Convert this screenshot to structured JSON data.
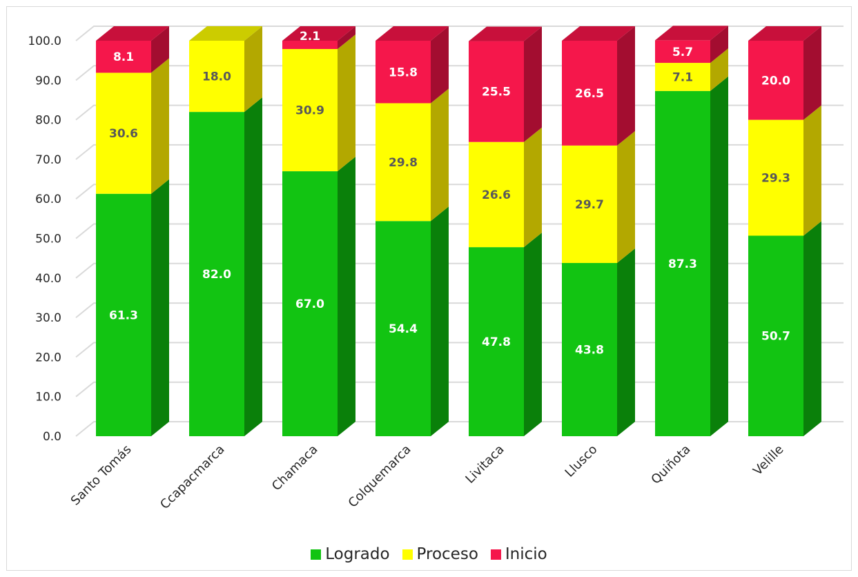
{
  "chart_data": {
    "type": "bar",
    "stacked": true,
    "style": "3d-column",
    "categories": [
      "Santo Tomás",
      "Ccapacmarca",
      "Chamaca",
      "Colquemarca",
      "Livitaca",
      "Llusco",
      "Quiñota",
      "Velille"
    ],
    "series": [
      {
        "name": "Logrado",
        "color": "#12c412",
        "side_color": "#0a800a",
        "top_color": "#0fa30f",
        "label_color": "#ffffff",
        "values": [
          61.3,
          82.0,
          67.0,
          54.4,
          47.8,
          43.8,
          87.3,
          50.7
        ]
      },
      {
        "name": "Proceso",
        "color": "#ffff00",
        "side_color": "#b3a800",
        "top_color": "#cccc00",
        "label_color": "#595959",
        "values": [
          30.6,
          18.0,
          30.9,
          29.8,
          26.6,
          29.7,
          7.1,
          29.3
        ]
      },
      {
        "name": "Inicio",
        "color": "#f5174b",
        "side_color": "#a30d30",
        "top_color": "#c8103b",
        "label_color": "#ffffff",
        "values": [
          8.1,
          null,
          2.1,
          15.8,
          25.5,
          26.5,
          5.7,
          20.0
        ]
      }
    ],
    "value_labels": [
      [
        "61.3",
        "82.0",
        "67.0",
        "54.4",
        "47.8",
        "43.8",
        "87.3",
        "50.7"
      ],
      [
        "30.6",
        "18.0",
        "30.9",
        "29.8",
        "26.6",
        "29.7",
        "7.1",
        "29.3"
      ],
      [
        "8.1",
        "",
        "2.1",
        "15.8",
        "25.5",
        "26.5",
        "5.7",
        "20.0"
      ]
    ],
    "y_ticks": [
      "0.0",
      "10.0",
      "20.0",
      "30.0",
      "40.0",
      "50.0",
      "60.0",
      "70.0",
      "80.0",
      "90.0",
      "100.0"
    ],
    "ylim": [
      0,
      100
    ],
    "grid": true,
    "legend_position": "bottom",
    "title": "",
    "xlabel": "",
    "ylabel": ""
  }
}
